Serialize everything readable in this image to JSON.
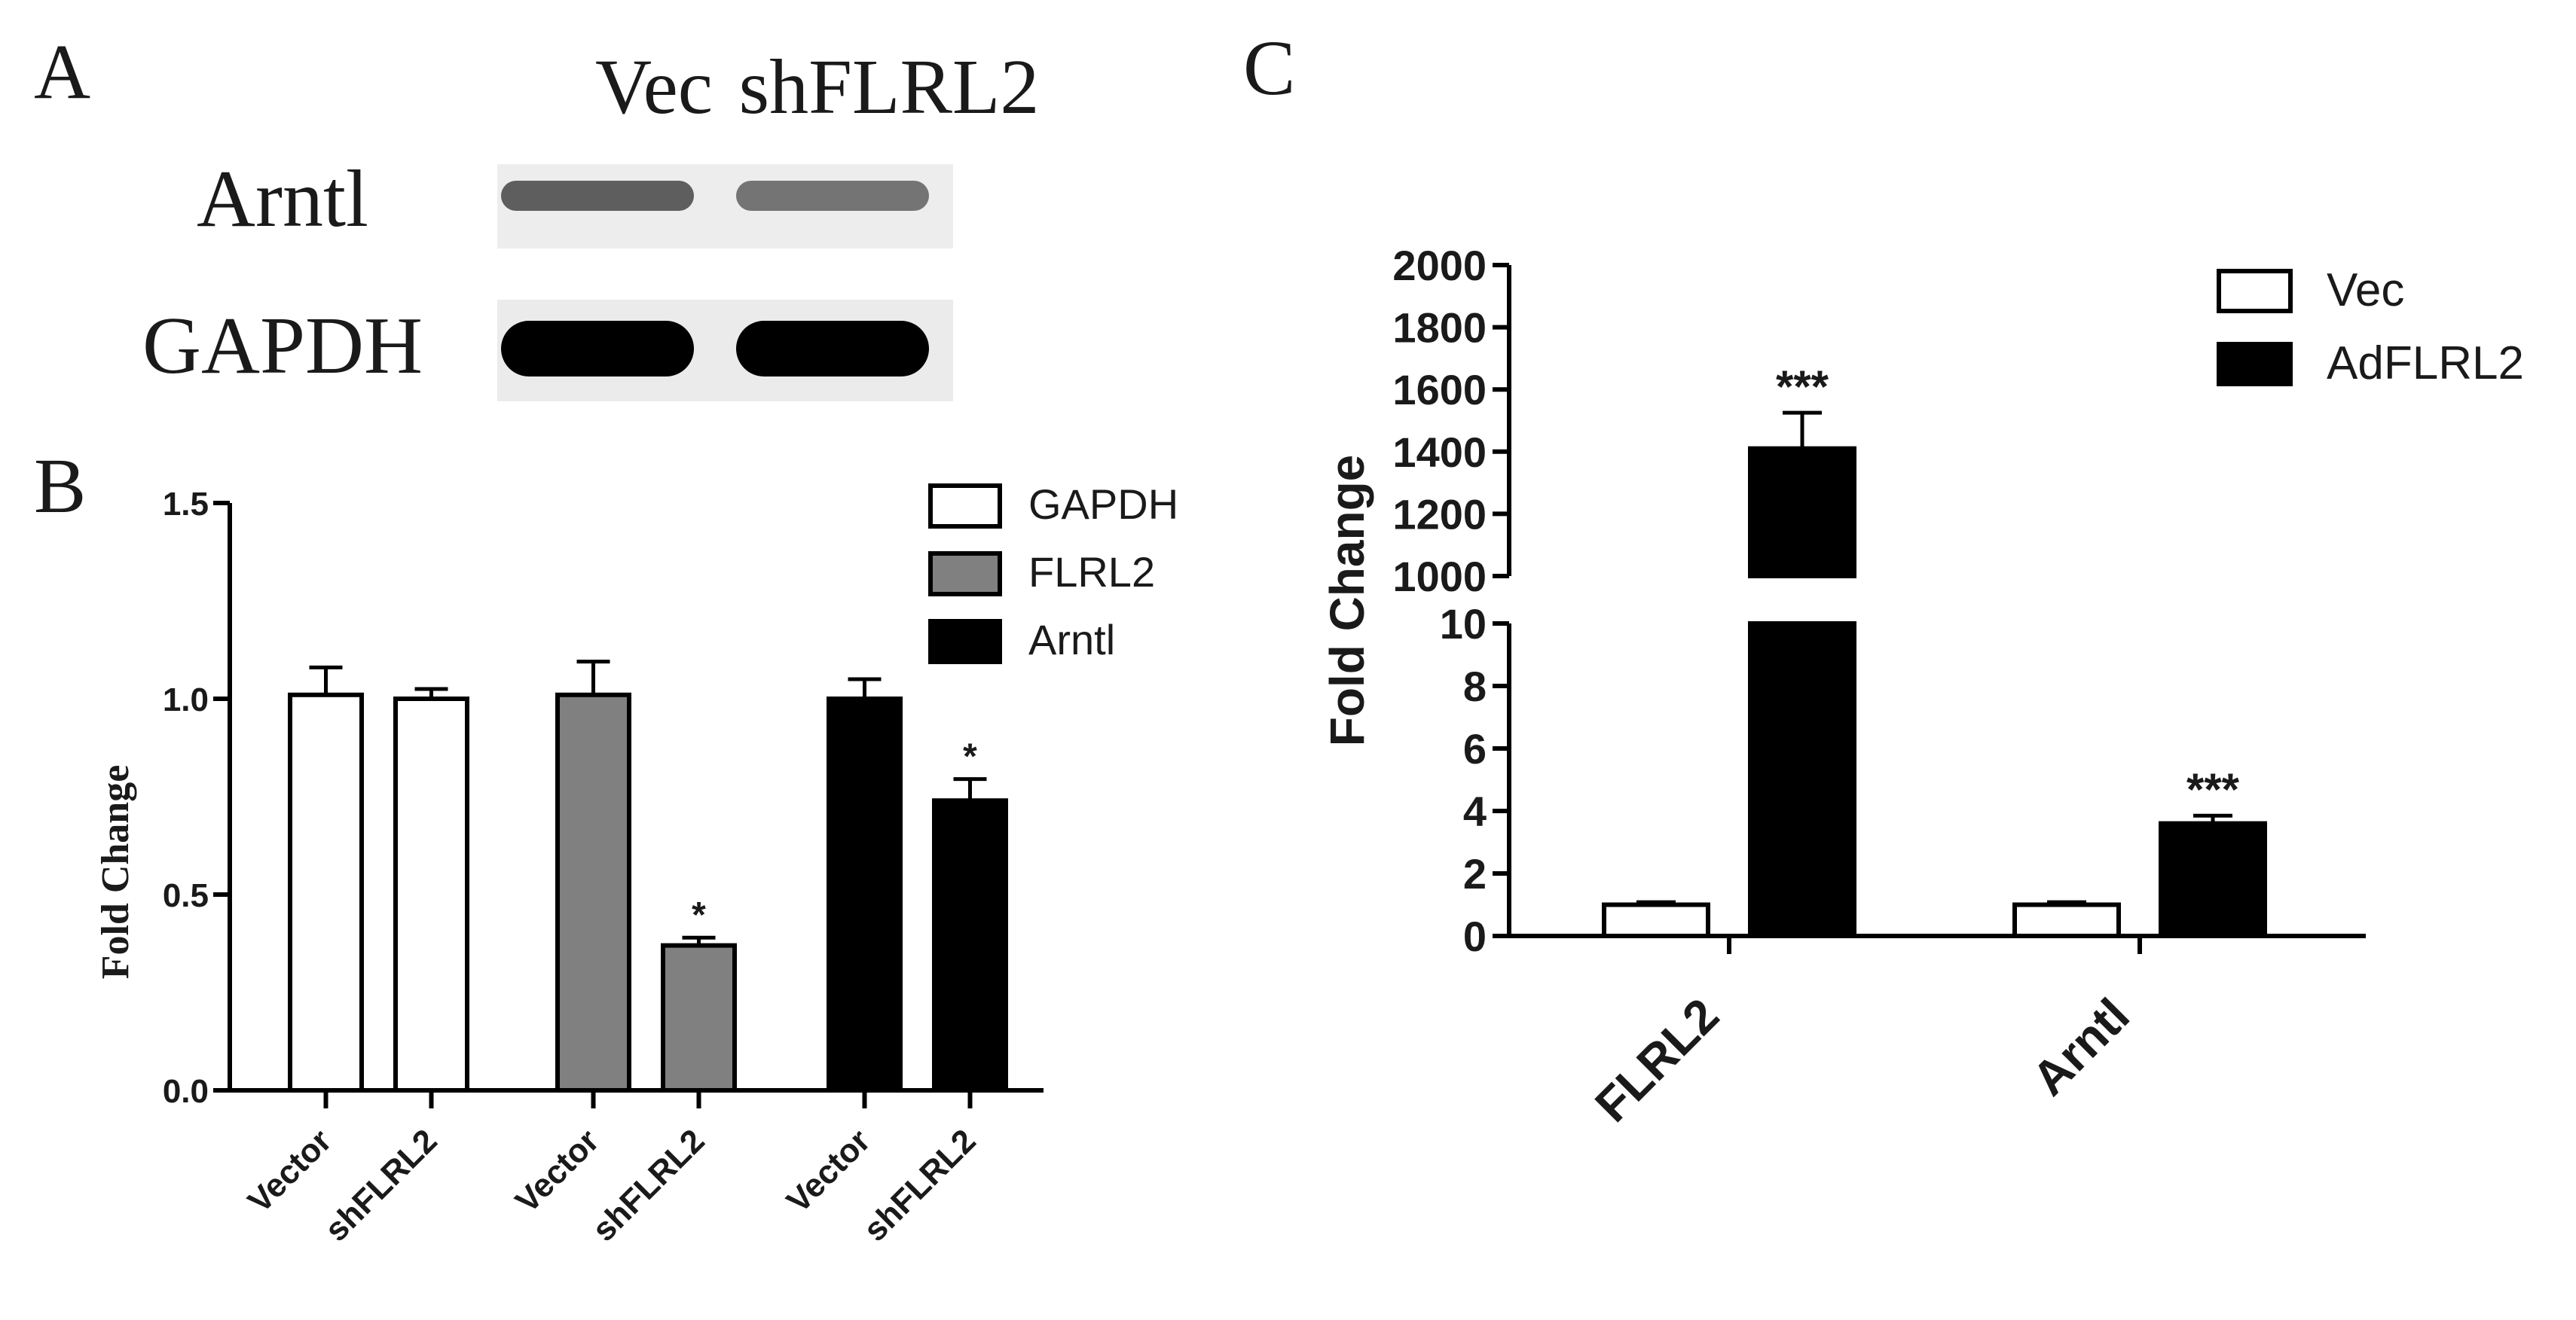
{
  "panels": {
    "a": {
      "letter": "A"
    },
    "b": {
      "letter": "B"
    },
    "c": {
      "letter": "C"
    }
  },
  "blot": {
    "lane_labels": [
      "Vec",
      "shFLRL2"
    ],
    "rows": [
      {
        "label": "Arntl",
        "intensities": [
          0.55,
          0.45
        ]
      },
      {
        "label": "GAPDH",
        "intensities": [
          1.0,
          1.0
        ]
      }
    ]
  },
  "chart_data": [
    {
      "id": "B",
      "type": "bar",
      "ylabel": "Fold Change",
      "xlabel": "",
      "ylim": [
        0,
        1.5
      ],
      "yticks": [
        "0.0",
        "0.5",
        "1.0",
        "1.5"
      ],
      "grid": false,
      "legend_position": "top-right",
      "legend": [
        {
          "name": "GAPDH",
          "color": "#ffffff"
        },
        {
          "name": "FLRL2",
          "color": "#808080"
        },
        {
          "name": "Arntl",
          "color": "#000000"
        }
      ],
      "groups": [
        {
          "name": "GAPDH",
          "color": "#ffffff",
          "bars": [
            {
              "label": "Vector",
              "value": 1.01,
              "error": 0.07,
              "sig": ""
            },
            {
              "label": "shFLRL2",
              "value": 1.0,
              "error": 0.025,
              "sig": ""
            }
          ]
        },
        {
          "name": "FLRL2",
          "color": "#808080",
          "bars": [
            {
              "label": "Vector",
              "value": 1.01,
              "error": 0.085,
              "sig": ""
            },
            {
              "label": "shFLRL2",
              "value": 0.37,
              "error": 0.02,
              "sig": "*"
            }
          ]
        },
        {
          "name": "Arntl",
          "color": "#000000",
          "bars": [
            {
              "label": "Vector",
              "value": 1.0,
              "error": 0.05,
              "sig": ""
            },
            {
              "label": "shFLRL2",
              "value": 0.74,
              "error": 0.055,
              "sig": "*"
            }
          ]
        }
      ]
    },
    {
      "id": "C",
      "type": "bar",
      "ylabel": "Fold Change",
      "xlabel": "",
      "axis_break": true,
      "ylim_lower": [
        0,
        10
      ],
      "yticks_lower": [
        "0",
        "2",
        "4",
        "6",
        "8",
        "10"
      ],
      "ylim_upper": [
        1000,
        2000
      ],
      "yticks_upper": [
        "1000",
        "1200",
        "1400",
        "1600",
        "1800",
        "2000"
      ],
      "grid": false,
      "legend_position": "top-right",
      "categories": [
        "FLRL2",
        "Arntl"
      ],
      "series": [
        {
          "name": "Vec",
          "color": "#ffffff",
          "values": [
            1.0,
            1.0
          ],
          "errors": [
            0.08,
            0.08
          ],
          "sig": [
            "",
            ""
          ]
        },
        {
          "name": "AdFLRL2",
          "color": "#000000",
          "values": [
            1410,
            3.6
          ],
          "errors": [
            115,
            0.25
          ],
          "sig": [
            "***",
            "***"
          ]
        }
      ]
    }
  ]
}
